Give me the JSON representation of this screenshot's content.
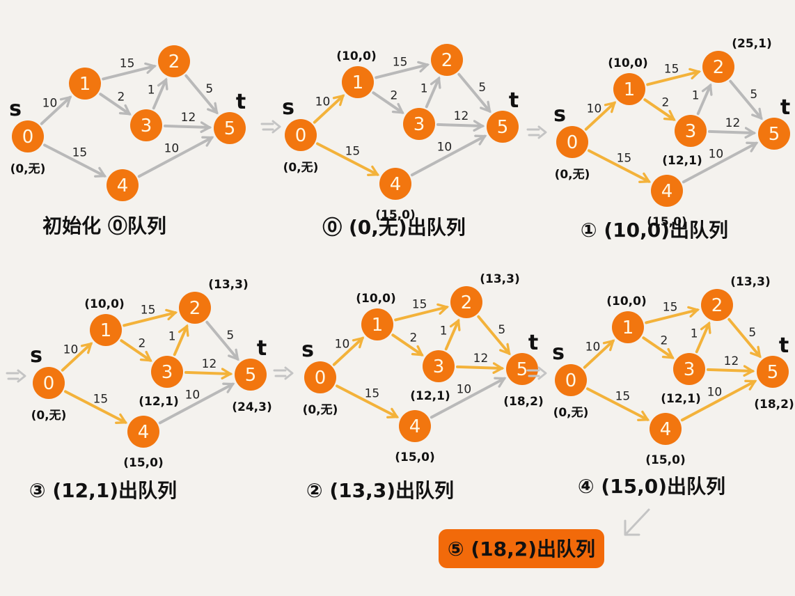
{
  "nodes": [
    "0",
    "1",
    "2",
    "3",
    "4",
    "5"
  ],
  "source_label": "s",
  "target_label": "t",
  "arrow_colors": {
    "unrelaxed": "#b9b9b9",
    "relaxed": "#f3b23a",
    "node": "#f2760f",
    "highlight": "#f26a0a"
  },
  "edges": [
    {
      "from": "0",
      "to": "1",
      "weight": "10"
    },
    {
      "from": "0",
      "to": "4",
      "weight": "15"
    },
    {
      "from": "1",
      "to": "2",
      "weight": "15"
    },
    {
      "from": "1",
      "to": "3",
      "weight": "2"
    },
    {
      "from": "3",
      "to": "2",
      "weight": "1"
    },
    {
      "from": "2",
      "to": "5",
      "weight": "5"
    },
    {
      "from": "3",
      "to": "5",
      "weight": "12"
    },
    {
      "from": "4",
      "to": "5",
      "weight": "10"
    }
  ],
  "panels": [
    {
      "caption": "初始化 ⓪队列",
      "labels": {
        "0": "(0,无)"
      },
      "relaxed": []
    },
    {
      "caption": "⓪ (0,无)出队列",
      "labels": {
        "0": "(0,无)",
        "1": "(10,0)",
        "4": "(15,0)"
      },
      "relaxed": [
        "0-1",
        "0-4"
      ]
    },
    {
      "caption": "① (10,0)出队列",
      "labels": {
        "0": "(0,无)",
        "1": "(10,0)",
        "2": "(25,1)",
        "3": "(12,1)",
        "4": "(15,0)"
      },
      "relaxed": [
        "0-1",
        "0-4",
        "1-2",
        "1-3"
      ]
    },
    {
      "caption": "③ (12,1)出队列",
      "labels": {
        "0": "(0,无)",
        "1": "(10,0)",
        "2": "(13,3)",
        "3": "(12,1)",
        "4": "(15,0)",
        "5": "(24,3)"
      },
      "relaxed": [
        "0-1",
        "0-4",
        "1-2",
        "1-3",
        "3-2",
        "3-5"
      ]
    },
    {
      "caption": "② (13,3)出队列",
      "labels": {
        "0": "(0,无)",
        "1": "(10,0)",
        "2": "(13,3)",
        "3": "(12,1)",
        "4": "(15,0)",
        "5": "(18,2)"
      },
      "relaxed": [
        "0-1",
        "0-4",
        "1-2",
        "1-3",
        "3-2",
        "3-5",
        "2-5"
      ]
    },
    {
      "caption": "④ (15,0)出队列",
      "labels": {
        "0": "(0,无)",
        "1": "(10,0)",
        "2": "(13,3)",
        "3": "(12,1)",
        "4": "(15,0)",
        "5": "(18,2)"
      },
      "relaxed": [
        "0-1",
        "0-4",
        "1-2",
        "1-3",
        "3-2",
        "3-5",
        "2-5",
        "4-5"
      ]
    }
  ],
  "final_caption": "⑤ (18,2)出队列"
}
